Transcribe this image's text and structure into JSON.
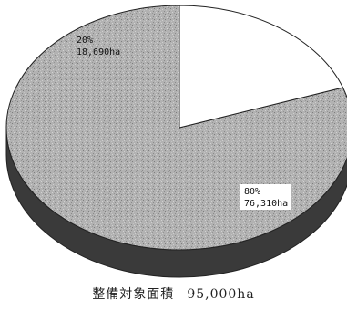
{
  "chart_data": {
    "type": "pie",
    "style": "3d",
    "slices": [
      {
        "percent_label": "80%",
        "area_label": "76,310ha",
        "value": 76310,
        "color": "#a9a9a9"
      },
      {
        "percent_label": "20%",
        "area_label": "18,690ha",
        "value": 18690,
        "color": "#ffffff"
      }
    ],
    "caption": {
      "label": "整備対象面積",
      "total": "95,000ha"
    }
  }
}
